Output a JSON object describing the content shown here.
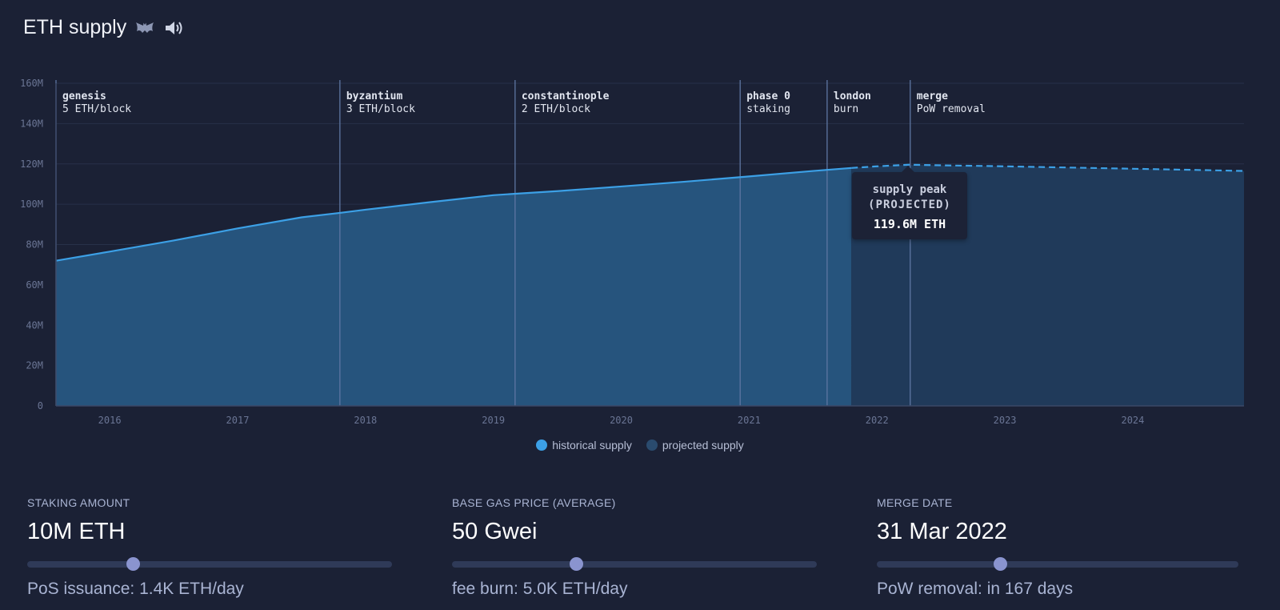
{
  "header": {
    "title": "ETH supply",
    "icons": [
      "bat-icon",
      "speaker-icon"
    ]
  },
  "chart_data": {
    "type": "area",
    "title": "",
    "xlabel": "",
    "ylabel": "",
    "x_ticks": [
      "2016",
      "2017",
      "2018",
      "2019",
      "2020",
      "2021",
      "2022",
      "2023",
      "2024"
    ],
    "y_ticks": [
      "0",
      "20M",
      "40M",
      "60M",
      "80M",
      "100M",
      "120M",
      "140M",
      "160M"
    ],
    "xlim": [
      2015.58,
      2024.87
    ],
    "ylim": [
      0,
      160
    ],
    "grid": true,
    "legend_position": "bottom-center",
    "series": [
      {
        "name": "historical supply",
        "color": "#3ca0e6",
        "style": "solid",
        "points": [
          [
            2015.58,
            72
          ],
          [
            2016.0,
            76.5
          ],
          [
            2016.5,
            82
          ],
          [
            2017.0,
            88
          ],
          [
            2017.5,
            93.5
          ],
          [
            2017.8,
            95.7
          ],
          [
            2018.0,
            97.3
          ],
          [
            2018.5,
            101
          ],
          [
            2019.0,
            104.5
          ],
          [
            2019.2,
            105.3
          ],
          [
            2019.5,
            106.5
          ],
          [
            2020.0,
            108.8
          ],
          [
            2020.5,
            111.2
          ],
          [
            2021.0,
            113.8
          ],
          [
            2021.5,
            116.5
          ],
          [
            2021.8,
            118
          ]
        ]
      },
      {
        "name": "projected supply",
        "color": "#2a4b6e",
        "style": "dashed",
        "points": [
          [
            2021.8,
            118
          ],
          [
            2022.0,
            118.8
          ],
          [
            2022.25,
            119.6
          ],
          [
            2022.5,
            119.3
          ],
          [
            2023.0,
            118.8
          ],
          [
            2023.5,
            118.2
          ],
          [
            2024.0,
            117.6
          ],
          [
            2024.5,
            117
          ],
          [
            2024.87,
            116.5
          ]
        ]
      }
    ],
    "eras": [
      {
        "x": 2015.58,
        "name": "genesis",
        "sub": "5 ETH/block"
      },
      {
        "x": 2017.8,
        "name": "byzantium",
        "sub": "3 ETH/block"
      },
      {
        "x": 2019.17,
        "name": "constantinople",
        "sub": "2 ETH/block"
      },
      {
        "x": 2020.93,
        "name": "phase 0",
        "sub": "staking"
      },
      {
        "x": 2021.61,
        "name": "london",
        "sub": "burn"
      },
      {
        "x": 2022.26,
        "name": "merge",
        "sub": "PoW removal"
      }
    ],
    "annotation": {
      "x": 2022.25,
      "y": 119.6,
      "line1": "supply peak",
      "line2": "(PROJECTED)",
      "value": "119.6M ETH"
    }
  },
  "legend": [
    {
      "label": "historical supply",
      "color": "#3ca0e6"
    },
    {
      "label": "projected supply",
      "color": "#2a4b6e"
    }
  ],
  "controls": {
    "staking": {
      "label": "STAKING AMOUNT",
      "value": "10M ETH",
      "slider": 0.29,
      "footer": "PoS issuance: 1.4K ETH/day"
    },
    "gas": {
      "label": "BASE GAS PRICE (AVERAGE)",
      "value": "50 Gwei",
      "slider": 0.34,
      "footer": "fee burn: 5.0K ETH/day"
    },
    "merge": {
      "label": "MERGE DATE",
      "value": "31 Mar 2022",
      "slider": 0.34,
      "footer": "PoW removal: in 167 days"
    }
  }
}
